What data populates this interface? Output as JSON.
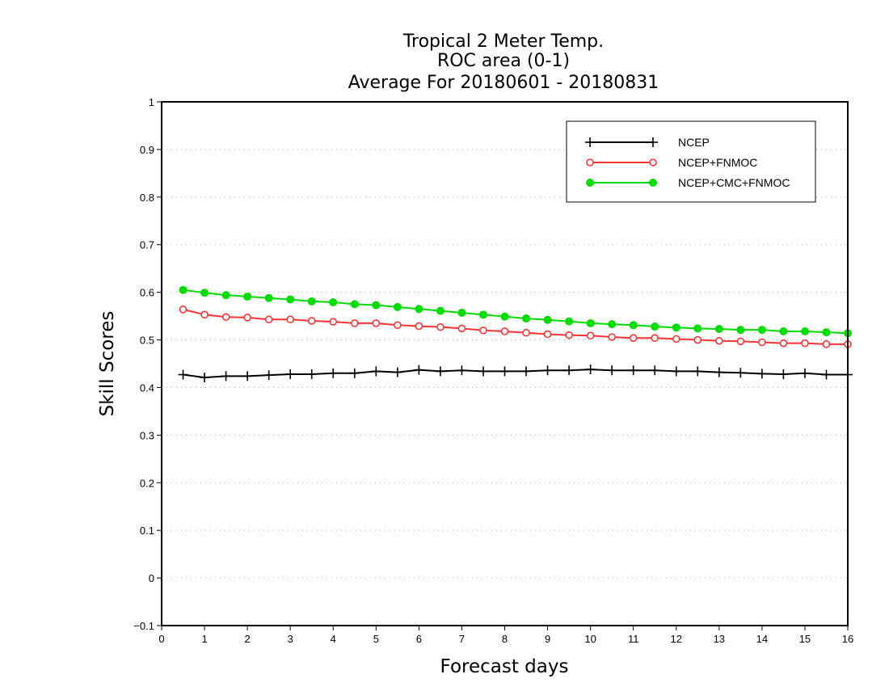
{
  "chart_data": {
    "type": "line",
    "title_lines": [
      "Tropical 2 Meter Temp.",
      "ROC area (0-1)",
      "Average For 20180601 - 20180831"
    ],
    "xlabel": "Forecast days",
    "ylabel": "Skill Scores",
    "xlim": [
      0,
      16
    ],
    "ylim": [
      -0.1,
      1
    ],
    "x_ticks": [
      0,
      1,
      2,
      3,
      4,
      5,
      6,
      7,
      8,
      9,
      10,
      11,
      12,
      13,
      14,
      15,
      16
    ],
    "x_tick_labels": [
      "0",
      "1",
      "2",
      "3",
      "4",
      "5",
      "6",
      "7",
      "8",
      "9",
      "10",
      "11",
      "12",
      "13",
      "14",
      "15",
      "16"
    ],
    "y_ticks": [
      -0.1,
      0,
      0.1,
      0.2,
      0.3,
      0.4,
      0.5,
      0.6,
      0.7,
      0.8,
      0.9,
      1
    ],
    "y_tick_labels": [
      "−0.1",
      "0",
      "0.1",
      "0.2",
      "0.3",
      "0.4",
      "0.5",
      "0.6",
      "0.7",
      "0.8",
      "0.9",
      "1"
    ],
    "grid": "horizontal dotted",
    "legend_position": "top-right",
    "x": [
      0.5,
      1,
      1.5,
      2,
      2.5,
      3,
      3.5,
      4,
      4.5,
      5,
      5.5,
      6,
      6.5,
      7,
      7.5,
      8,
      8.5,
      9,
      9.5,
      10,
      10.5,
      11,
      11.5,
      12,
      12.5,
      13,
      13.5,
      14,
      14.5,
      15,
      15.5,
      16
    ],
    "series": [
      {
        "name": "NCEP",
        "color": "#000000",
        "marker": "plus",
        "values": [
          0.427,
          0.421,
          0.424,
          0.424,
          0.426,
          0.428,
          0.428,
          0.43,
          0.43,
          0.434,
          0.432,
          0.437,
          0.434,
          0.436,
          0.434,
          0.434,
          0.434,
          0.436,
          0.436,
          0.438,
          0.436,
          0.436,
          0.436,
          0.434,
          0.434,
          0.432,
          0.431,
          0.429,
          0.428,
          0.43,
          0.427,
          0.427
        ]
      },
      {
        "name": "NCEP+FNMOC",
        "color": "#ff3333",
        "marker": "open-circle",
        "values": [
          0.564,
          0.553,
          0.548,
          0.547,
          0.543,
          0.543,
          0.54,
          0.538,
          0.535,
          0.535,
          0.531,
          0.529,
          0.527,
          0.524,
          0.52,
          0.518,
          0.515,
          0.512,
          0.51,
          0.509,
          0.506,
          0.504,
          0.504,
          0.502,
          0.5,
          0.498,
          0.497,
          0.495,
          0.493,
          0.493,
          0.491,
          0.491
        ]
      },
      {
        "name": "NCEP+CMC+FNMOC",
        "color": "#00dd00",
        "marker": "filled-circle",
        "values": [
          0.605,
          0.599,
          0.594,
          0.591,
          0.588,
          0.585,
          0.581,
          0.579,
          0.575,
          0.573,
          0.569,
          0.565,
          0.561,
          0.557,
          0.553,
          0.549,
          0.545,
          0.542,
          0.539,
          0.535,
          0.533,
          0.531,
          0.528,
          0.526,
          0.524,
          0.523,
          0.521,
          0.521,
          0.518,
          0.518,
          0.516,
          0.514
        ]
      }
    ]
  }
}
